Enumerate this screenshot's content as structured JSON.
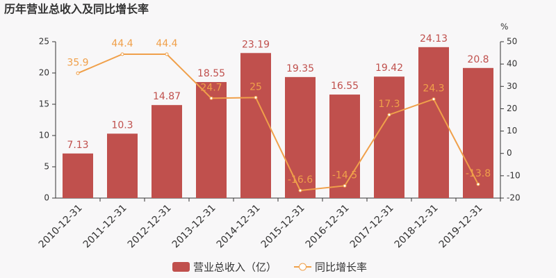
{
  "chart_data": {
    "type": "combo",
    "title": "历年营业总收入及同比增长率",
    "y2_label": "%",
    "categories": [
      "2010-12-31",
      "2011-12-31",
      "2012-12-31",
      "2013-12-31",
      "2014-12-31",
      "2015-12-31",
      "2016-12-31",
      "2017-12-31",
      "2018-12-31",
      "2019-12-31"
    ],
    "series": [
      {
        "name": "营业总收入（亿）",
        "type": "bar",
        "color": "#c0504d",
        "values": [
          7.13,
          10.3,
          14.87,
          18.55,
          23.19,
          19.35,
          16.55,
          19.42,
          24.13,
          20.8
        ]
      },
      {
        "name": "同比增长率",
        "type": "line",
        "axis": "y2",
        "color": "#f0a04a",
        "values": [
          35.9,
          44.4,
          44.4,
          24.7,
          25,
          -16.6,
          -14.5,
          17.3,
          24.3,
          -13.8
        ]
      }
    ],
    "ylim": [
      0,
      25
    ],
    "yticks": [
      0,
      5,
      10,
      15,
      20,
      25
    ],
    "y2lim": [
      -20,
      50
    ],
    "y2ticks": [
      -20,
      -10,
      0,
      10,
      20,
      30,
      40,
      50
    ],
    "legend": "bottom"
  }
}
